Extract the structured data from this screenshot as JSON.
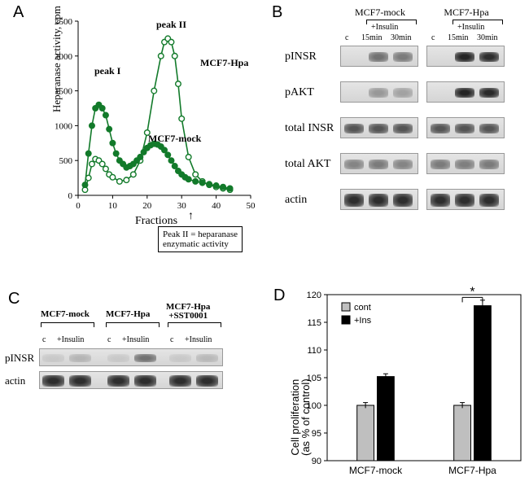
{
  "panelA": {
    "label": "A",
    "type": "line-scatter",
    "title_peakI": "peak I",
    "title_peakII": "peak II",
    "series1_label": "MCF7-Hpa",
    "series2_label": "MCF7-mock",
    "xlabel": "Fractions",
    "ylabel": "Heparanase activity, cpm",
    "callout": "Peak II = heparanase\nenzymatic activity",
    "xlim": [
      0,
      50
    ],
    "xtick_step": 10,
    "ylim": [
      0,
      2500
    ],
    "ytick_step": 500,
    "line_color": "#127a2a",
    "marker_open_series": "MCF7-Hpa",
    "marker_filled_series": "MCF7-mock",
    "background_color": "#ffffff",
    "axis_color": "#000000",
    "label_fontsize": 14,
    "mcf7_hpa": {
      "x": [
        2,
        3,
        4,
        5,
        6,
        7,
        8,
        9,
        10,
        12,
        14,
        16,
        18,
        20,
        22,
        24,
        25,
        26,
        27,
        28,
        29,
        30,
        32,
        34,
        36,
        38,
        40,
        42,
        44
      ],
      "y": [
        80,
        250,
        450,
        520,
        500,
        450,
        380,
        300,
        260,
        200,
        220,
        300,
        500,
        900,
        1500,
        2000,
        2200,
        2250,
        2200,
        2000,
        1600,
        1100,
        550,
        300,
        200,
        150,
        120,
        100,
        80
      ]
    },
    "mcf7_mock": {
      "x": [
        2,
        3,
        4,
        5,
        6,
        7,
        8,
        9,
        10,
        11,
        12,
        13,
        14,
        15,
        16,
        17,
        18,
        19,
        20,
        21,
        22,
        23,
        24,
        25,
        26,
        27,
        28,
        29,
        30,
        31,
        32,
        34,
        36,
        38,
        40,
        42,
        44
      ],
      "y": [
        150,
        600,
        1000,
        1250,
        1300,
        1250,
        1150,
        950,
        750,
        600,
        500,
        450,
        400,
        420,
        450,
        500,
        550,
        620,
        680,
        720,
        740,
        730,
        700,
        650,
        580,
        500,
        420,
        350,
        300,
        260,
        230,
        200,
        180,
        160,
        140,
        120,
        100
      ]
    }
  },
  "panelB": {
    "label": "B",
    "type": "western-blot",
    "group1": "MCF7-mock",
    "group2": "MCF7-Hpa",
    "treatment": "+Insulin",
    "lanes": [
      "c",
      "15min",
      "30min",
      "c",
      "15min",
      "30min"
    ],
    "rows": [
      "pINSR",
      "pAKT",
      "total INSR",
      "total AKT",
      "actin"
    ],
    "band_intensity": {
      "pINSR": [
        0.02,
        0.55,
        0.5,
        0.02,
        0.95,
        0.9
      ],
      "pAKT": [
        0.02,
        0.35,
        0.3,
        0.02,
        0.95,
        0.92
      ],
      "total INSR": [
        0.7,
        0.7,
        0.7,
        0.7,
        0.7,
        0.7
      ],
      "total AKT": [
        0.45,
        0.5,
        0.45,
        0.5,
        0.48,
        0.5
      ],
      "actin": [
        0.9,
        0.9,
        0.9,
        0.9,
        0.9,
        0.9
      ]
    },
    "strip_bg": "#dcdcdc",
    "band_color": "#1a1a1a"
  },
  "panelC": {
    "label": "C",
    "type": "western-blot",
    "groups": [
      "MCF7-mock",
      "MCF7-Hpa",
      "MCF7-Hpa\n+SST0001"
    ],
    "lanes_per_group": [
      "c",
      "+Insulin"
    ],
    "rows": [
      "pINSR",
      "actin"
    ],
    "band_intensity": {
      "pINSR": [
        0.1,
        0.2,
        0.1,
        0.55,
        0.1,
        0.18
      ],
      "actin": [
        0.9,
        0.9,
        0.9,
        0.9,
        0.9,
        0.9
      ]
    },
    "strip_bg": "#dcdcdc",
    "band_color": "#1a1a1a"
  },
  "panelD": {
    "label": "D",
    "type": "bar",
    "ylabel": "Cell proliferation\n(as % of control)",
    "ylim": [
      90,
      120
    ],
    "ytick_step": 5,
    "groups": [
      "MCF7-mock",
      "MCF7-Hpa"
    ],
    "series": [
      {
        "name": "cont",
        "color": "#bfbfbf",
        "values": [
          100.0,
          100.0
        ],
        "err": [
          0.5,
          0.5
        ]
      },
      {
        "name": "+Ins",
        "color": "#000000",
        "values": [
          105.2,
          118.0
        ],
        "err": [
          0.5,
          1.0
        ]
      }
    ],
    "sig_marker": "*",
    "sig_between": "MCF7-Hpa cont vs +Ins",
    "bar_width": 0.35,
    "axis_color": "#000000",
    "label_fontsize": 12,
    "legend_pos": "top-inside"
  }
}
